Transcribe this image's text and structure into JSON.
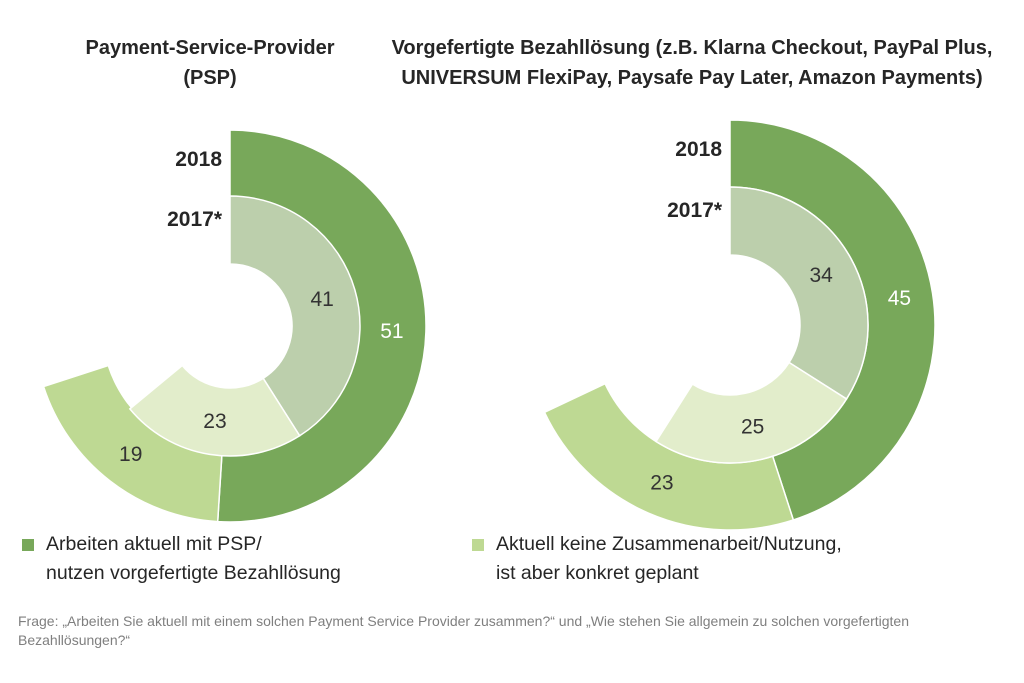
{
  "colors": {
    "current_outer": "#78a85a",
    "planned_outer": "#bed993",
    "current_inner": "#bccfac",
    "planned_inner": "#e2edcb"
  },
  "legend": [
    {
      "label": "Arbeiten aktuell mit PSP/\nnutzen vorgefertigte Bezahllösung",
      "color": "#78a85a"
    },
    {
      "label": "Aktuell keine Zusammenarbeit/Nutzung,\n ist aber konkret geplant",
      "color": "#bed993"
    }
  ],
  "footnote": "Frage: „Arbeiten Sie aktuell mit einem solchen Payment Service Provider zusammen?“ und „Wie stehen Sie allgemein zu solchen vorgefertigten Bezahllösungen?“",
  "chart_data": [
    {
      "type": "pie",
      "style": "nested-donut",
      "title": "Payment-Service-Provider (PSP)",
      "series": [
        {
          "name": "2018",
          "values": [
            51,
            19
          ]
        },
        {
          "name": "2017*",
          "values": [
            41,
            23
          ]
        }
      ],
      "categories": [
        "Arbeiten aktuell mit PSP/ nutzen vorgefertigte Bezahllösung",
        "Aktuell keine Zusammenarbeit/Nutzung, ist aber konkret geplant"
      ]
    },
    {
      "type": "pie",
      "style": "nested-donut",
      "title": "Vorgefertigte Bezahllösung (z.B. Klarna Checkout, PayPal Plus, UNIVERSUM FlexiPay, Paysafe Pay Later, Amazon Payments)",
      "series": [
        {
          "name": "2018",
          "values": [
            45,
            23
          ]
        },
        {
          "name": "2017*",
          "values": [
            34,
            25
          ]
        }
      ],
      "categories": [
        "Arbeiten aktuell mit PSP/ nutzen vorgefertigte Bezahllösung",
        "Aktuell keine Zusammenarbeit/Nutzung, ist aber konkret geplant"
      ]
    }
  ]
}
